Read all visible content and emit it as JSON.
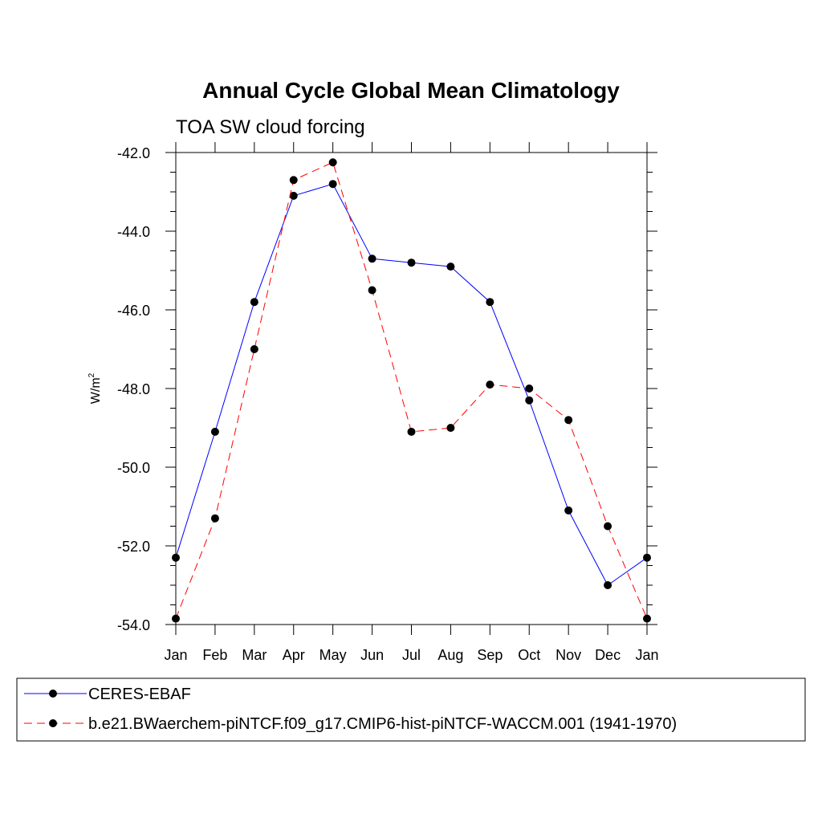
{
  "chart_data": {
    "type": "line",
    "title": "Annual Cycle Global Mean Climatology",
    "subtitle": "TOA SW cloud forcing",
    "xlabel": "",
    "ylabel": "W/m",
    "ylabel_superscript": "2",
    "categories": [
      "Jan",
      "Feb",
      "Mar",
      "Apr",
      "May",
      "Jun",
      "Jul",
      "Aug",
      "Sep",
      "Oct",
      "Nov",
      "Dec",
      "Jan"
    ],
    "yticks": [
      "-42.0",
      "-44.0",
      "-46.0",
      "-48.0",
      "-50.0",
      "-52.0",
      "-54.0"
    ],
    "ylim": [
      -54,
      -42
    ],
    "grid": false,
    "legend_position": "bottom",
    "series": [
      {
        "name": "CERES-EBAF",
        "color": "#0000ff",
        "dash": "solid",
        "values": [
          -52.3,
          -49.1,
          -45.8,
          -43.1,
          -42.8,
          -44.7,
          -44.8,
          -44.9,
          -45.8,
          -48.3,
          -51.1,
          -53.0,
          -52.3
        ]
      },
      {
        "name": "b.e21.BWaerchem-piNTCF.f09_g17.CMIP6-hist-piNTCF-WACCM.001 (1941-1970)",
        "color": "#ff0000",
        "dash": "dashed",
        "values": [
          -53.85,
          -51.3,
          -47.0,
          -42.7,
          -42.25,
          -45.5,
          -49.1,
          -49.0,
          -47.9,
          -48.0,
          -48.8,
          -51.5,
          -53.85
        ]
      }
    ]
  }
}
